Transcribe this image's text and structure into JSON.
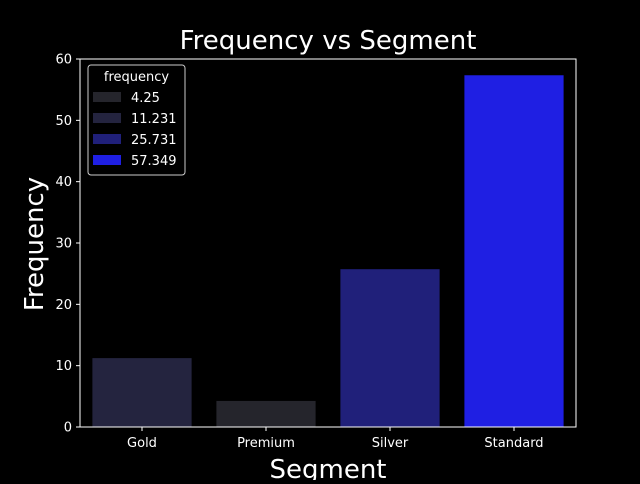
{
  "chart_data": {
    "type": "bar",
    "title": "Frequency vs Segment",
    "xlabel": "Segment",
    "ylabel": "Frequency",
    "categories": [
      "Gold",
      "Premium",
      "Silver",
      "Standard"
    ],
    "values": [
      11.231,
      4.25,
      25.731,
      57.349
    ],
    "ylim": [
      0,
      60
    ],
    "yticks": [
      0,
      10,
      20,
      30,
      40,
      50,
      60
    ],
    "grid": false,
    "bar_colors": [
      "#24243f",
      "#25252c",
      "#20207a",
      "#1f1fe3"
    ],
    "legend": {
      "title": "frequency",
      "placement": "top-left",
      "entries": [
        {
          "label": "4.25",
          "color": "#25252c"
        },
        {
          "label": "11.231",
          "color": "#24243f"
        },
        {
          "label": "25.731",
          "color": "#20207a"
        },
        {
          "label": "57.349",
          "color": "#1f1fe3"
        }
      ]
    },
    "background": "#000000",
    "text_color": "#ffffff"
  }
}
